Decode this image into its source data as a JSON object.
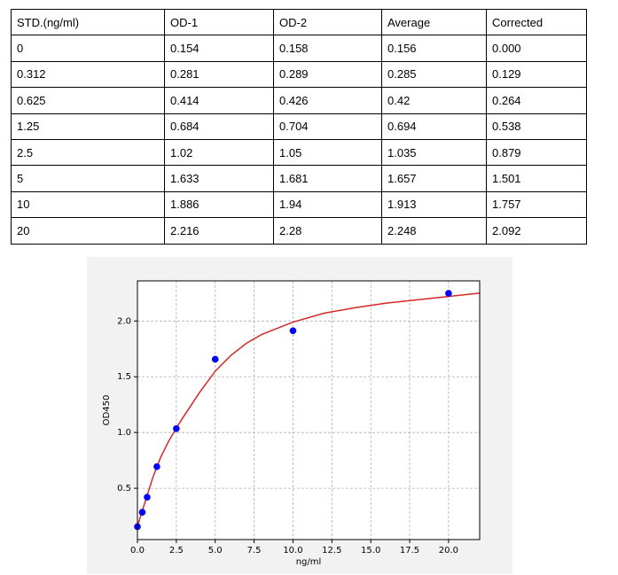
{
  "table": {
    "header": [
      "STD.(ng/ml)",
      "OD-1",
      "OD-2",
      "Average",
      "Corrected"
    ],
    "rows": [
      [
        "0",
        "0.154",
        "0.158",
        "0.156",
        "0.000"
      ],
      [
        "0.312",
        "0.281",
        "0.289",
        "0.285",
        "0.129"
      ],
      [
        "0.625",
        "0.414",
        "0.426",
        "0.42",
        "0.264"
      ],
      [
        "1.25",
        "0.684",
        "0.704",
        "0.694",
        "0.538"
      ],
      [
        "2.5",
        "1.02",
        "1.05",
        "1.035",
        "0.879"
      ],
      [
        "5",
        "1.633",
        "1.681",
        "1.657",
        "1.501"
      ],
      [
        "10",
        "1.886",
        "1.94",
        "1.913",
        "1.757"
      ],
      [
        "20",
        "2.216",
        "2.28",
        "2.248",
        "2.092"
      ]
    ]
  },
  "chart_data": {
    "type": "scatter",
    "x_label": "ng/ml",
    "y_label": "OD450",
    "series": [
      {
        "mode": "markers",
        "color": "#0000ff",
        "x": [
          0,
          0.312,
          0.625,
          1.25,
          2.5,
          5,
          10,
          20
        ],
        "values": [
          0.156,
          0.285,
          0.42,
          0.694,
          1.035,
          1.657,
          1.913,
          2.248
        ]
      },
      {
        "mode": "line",
        "color": "#d62728",
        "x": [
          0,
          0.5,
          1,
          1.5,
          2,
          2.5,
          3,
          4,
          5,
          6,
          7,
          8,
          10,
          12,
          14,
          16,
          18,
          20,
          22
        ],
        "values": [
          0.16,
          0.38,
          0.6,
          0.78,
          0.92,
          1.04,
          1.15,
          1.36,
          1.55,
          1.69,
          1.8,
          1.88,
          1.99,
          2.07,
          2.12,
          2.16,
          2.19,
          2.22,
          2.25
        ]
      }
    ],
    "xlim": [
      0,
      22
    ],
    "ylim": [
      0.04,
      2.36
    ],
    "xticks": [
      {
        "value": 0,
        "label": "0.0"
      },
      2.5,
      {
        "value": 5,
        "label": "5.0"
      },
      7.5,
      {
        "value": 10,
        "label": "10.0"
      },
      12.5,
      {
        "value": 15,
        "label": "15.0"
      },
      17.5,
      {
        "value": 20,
        "label": "20.0"
      }
    ],
    "yticks": [
      0.5,
      {
        "value": 1,
        "label": "1.0"
      },
      1.5,
      {
        "value": 2,
        "label": "2.0"
      }
    ],
    "grid": true
  }
}
